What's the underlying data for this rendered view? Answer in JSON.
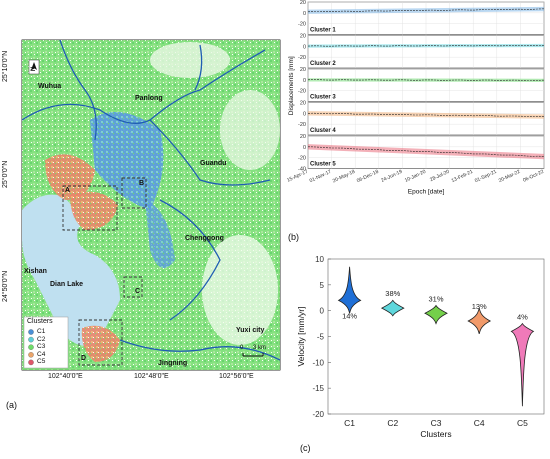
{
  "panel_labels": {
    "a": "(a)",
    "b": "(b)",
    "c": "(c)"
  },
  "map": {
    "lat_ticks": [
      "25°10'0\"N",
      "25°0'0\"N",
      "24°50'0\"N"
    ],
    "lon_ticks": [
      "102°40'0\"E",
      "102°48'0\"E",
      "102°56'0\"E"
    ],
    "places": {
      "wuhua": "Wuhua",
      "panlong": "Panlong",
      "guandu": "Guandu",
      "chenggong": "Chenggong",
      "xishan": "Xishan",
      "dianlake": "Dian Lake",
      "yuxi": "Yuxi city",
      "jingning": "Jingning"
    },
    "boxes": [
      "A",
      "B",
      "C",
      "D"
    ],
    "north": "N",
    "scale": {
      "zero": "0",
      "len": "3 km"
    },
    "legend": {
      "title": "Clusters",
      "items": [
        {
          "label": "C1",
          "color": "#4a8fd6"
        },
        {
          "label": "C2",
          "color": "#5fd0d8"
        },
        {
          "label": "C3",
          "color": "#6fdc6a"
        },
        {
          "label": "C4",
          "color": "#eaa46a"
        },
        {
          "label": "C5",
          "color": "#e0566a"
        }
      ]
    }
  },
  "chart_data": [
    {
      "type": "line",
      "ylabel": "Displacements [mm]",
      "xlabel": "Epoch [date]",
      "x_ticks": [
        "15-Apr-17",
        "01-Nov-17",
        "20-May-18",
        "06-Dec-18",
        "24-Jun-19",
        "10-Jan-20",
        "28-Jul-20",
        "13-Feb-21",
        "01-Sep-21",
        "20-Mar-22",
        "06-Oct-22"
      ],
      "y_ticks": [
        20,
        0,
        -20
      ],
      "y_tick_bottom": -40,
      "ylim": [
        -40,
        20
      ],
      "series": [
        {
          "name": "Cluster 1",
          "color": "#7fb6e6",
          "start": 2,
          "end": 7,
          "band": 4
        },
        {
          "name": "Cluster 2",
          "color": "#6fdbe3",
          "start": 0.5,
          "end": 1.5,
          "band": 3
        },
        {
          "name": "Cluster 3",
          "color": "#79df7a",
          "start": 0,
          "end": -1,
          "band": 3
        },
        {
          "name": "Cluster 4",
          "color": "#f0b07a",
          "start": 0,
          "end": -6,
          "band": 4
        },
        {
          "name": "Cluster 5",
          "color": "#e9707e",
          "start": 0,
          "end": -18,
          "band": 5
        }
      ]
    },
    {
      "type": "violin",
      "ylabel": "Velocity [mm/yr]",
      "xlabel": "Clusters",
      "ylim": [
        -20,
        10
      ],
      "y_ticks": [
        10,
        5,
        0,
        -5,
        -10,
        -15,
        -20
      ],
      "categories": [
        "C1",
        "C2",
        "C3",
        "C4",
        "C5"
      ],
      "medians": [
        2,
        0.5,
        -0.5,
        -2,
        -4
      ],
      "min": [
        -0.5,
        -1,
        -2.5,
        -4.5,
        -18.5
      ],
      "max": [
        8.5,
        2,
        1,
        0.5,
        -2.5
      ],
      "percent": [
        "14%",
        "38%",
        "31%",
        "13%",
        "4%"
      ],
      "colors": [
        "#1f6fd6",
        "#5fd7dc",
        "#74d04a",
        "#f19a6a",
        "#f07ab9"
      ]
    }
  ]
}
